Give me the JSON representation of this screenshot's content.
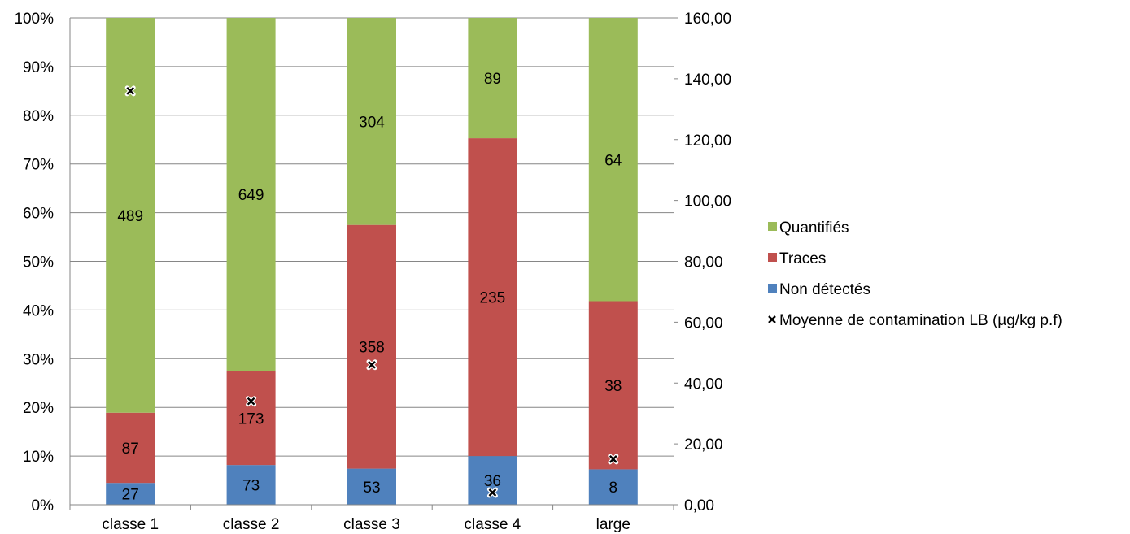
{
  "chart_data": {
    "type": "bar",
    "stacked": true,
    "normalized": true,
    "categories": [
      "classe 1",
      "classe 2",
      "classe 3",
      "classe 4",
      "large"
    ],
    "series": [
      {
        "name": "Non détectés",
        "color": "#4F81BD",
        "values": [
          27,
          73,
          53,
          36,
          8
        ]
      },
      {
        "name": "Traces",
        "color": "#C0504D",
        "values": [
          87,
          173,
          358,
          235,
          38
        ]
      },
      {
        "name": "Quantifiés",
        "color": "#9BBB59",
        "values": [
          489,
          649,
          304,
          89,
          64
        ]
      }
    ],
    "secondary_series": {
      "name": "Moyenne de contamination LB (µg/kg p.f)",
      "type": "scatter",
      "marker": "x",
      "axis": "right",
      "values": [
        136,
        34,
        46,
        4,
        15
      ]
    },
    "y_left": {
      "ylim": [
        0,
        100
      ],
      "ticks": [
        "0%",
        "10%",
        "20%",
        "30%",
        "40%",
        "50%",
        "60%",
        "70%",
        "80%",
        "90%",
        "100%"
      ]
    },
    "y_right": {
      "ylim": [
        0,
        160
      ],
      "ticks": [
        "0,00",
        "20,00",
        "40,00",
        "60,00",
        "80,00",
        "100,00",
        "120,00",
        "140,00",
        "160,00"
      ]
    },
    "grid": true,
    "legend": {
      "position": "right",
      "order": [
        "Quantifiés",
        "Traces",
        "Non détectés",
        "Moyenne de contamination LB (µg/kg p.f)"
      ]
    }
  }
}
